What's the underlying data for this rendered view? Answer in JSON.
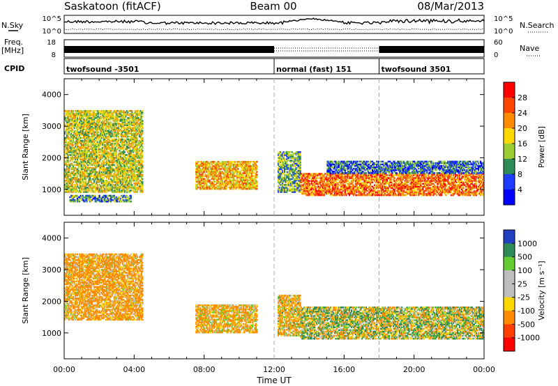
{
  "header": {
    "station": "Saskatoon (fitACF)",
    "beam": "Beam 00",
    "date": "08/Mar/2013"
  },
  "summary_panels": {
    "nsky_label": "N.Sky",
    "nsky_ticks": [
      "10^5",
      "10^0"
    ],
    "nsearch_label": "N.Search",
    "freq_label": "Freq.",
    "freq_unit": "[MHz]",
    "freq_ticks": [
      "18",
      "8"
    ],
    "nave_label": "Nave",
    "nave_ticks": [
      "60",
      "0"
    ],
    "cpid_label": "CPID",
    "cpid_segments": [
      {
        "label": "twofsound -3501",
        "start_hour": 0
      },
      {
        "label": "normal (fast) 151",
        "start_hour": 12
      },
      {
        "label": "twofsound 3501",
        "start_hour": 18
      }
    ]
  },
  "axes": {
    "ylabel": "Slant Range [km]",
    "xlabel": "Time UT",
    "y_ticks": [
      1000,
      2000,
      3000,
      4000
    ],
    "y_range": [
      180,
      4500
    ],
    "x_range": [
      0,
      24
    ],
    "x_tick_labels": [
      "00:00",
      "04:00",
      "08:00",
      "12:00",
      "16:00",
      "20:00",
      "00:00"
    ]
  },
  "colorbars": {
    "power": {
      "label": "Power [dB]",
      "ticks": [
        "28",
        "24",
        "20",
        "16",
        "12",
        "8",
        "4"
      ],
      "colors": [
        "#ff0000",
        "#ff4500",
        "#ff8c00",
        "#ffd700",
        "#9acd32",
        "#2e8b57",
        "#1e3cff",
        "#0000ff"
      ]
    },
    "velocity": {
      "label": "Velocity [m s⁻¹]",
      "ticks": [
        "1000",
        "500",
        "100",
        "25",
        "-25",
        "-100",
        "-500",
        "-1000"
      ],
      "colors": [
        "#2040c0",
        "#2e8b57",
        "#66cc33",
        "#bebebe",
        "#bebebe",
        "#ffd700",
        "#ff8c00",
        "#ff4000",
        "#ff0000"
      ]
    }
  },
  "chart_data": [
    {
      "type": "heatmap",
      "name": "power",
      "x_range": [
        0,
        24
      ],
      "y_range": [
        180,
        4500
      ],
      "z_label": "Power [dB]",
      "regions": [
        {
          "t": [
            0.0,
            4.5
          ],
          "r": [
            900,
            3500
          ],
          "z": 18
        },
        {
          "t": [
            0.3,
            3.8
          ],
          "r": [
            600,
            800
          ],
          "z": 12
        },
        {
          "t": [
            7.5,
            11.0
          ],
          "r": [
            1000,
            1900
          ],
          "z": 22
        },
        {
          "t": [
            12.2,
            13.5
          ],
          "r": [
            900,
            2200
          ],
          "z": 14
        },
        {
          "t": [
            13.5,
            24.0
          ],
          "r": [
            800,
            1500
          ],
          "z": 26
        },
        {
          "t": [
            15.0,
            24.0
          ],
          "r": [
            1500,
            1900
          ],
          "z": 10
        }
      ]
    },
    {
      "type": "heatmap",
      "name": "velocity",
      "x_range": [
        0,
        24
      ],
      "y_range": [
        180,
        4500
      ],
      "z_label": "Velocity [m s-1]",
      "regions": [
        {
          "t": [
            0.0,
            4.5
          ],
          "r": [
            1400,
            3500
          ],
          "v": -200
        },
        {
          "t": [
            7.5,
            11.0
          ],
          "r": [
            1000,
            1900
          ],
          "v": -150
        },
        {
          "t": [
            12.2,
            13.5
          ],
          "r": [
            900,
            2200
          ],
          "v": -120
        },
        {
          "t": [
            13.5,
            24.0
          ],
          "r": [
            800,
            1800
          ],
          "v": 0
        }
      ]
    }
  ]
}
